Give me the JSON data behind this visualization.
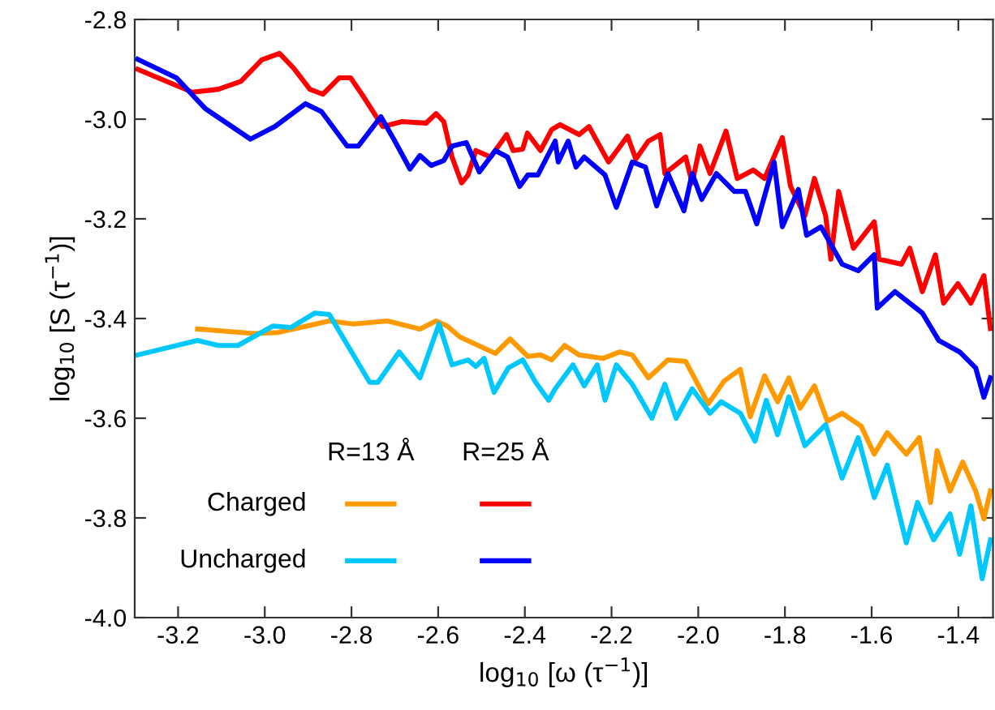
{
  "chart_data": {
    "type": "line",
    "xlabel": "log$_{10}$ [ω (τ$^{−1}$)]",
    "ylabel": "log$_{10}$ [S (τ$^{−1}$)]",
    "xlim": [
      -3.3,
      -1.32
    ],
    "xticks": [
      -3.2,
      {
        "value": -3.0,
        "label": "-3.0"
      },
      -2.8,
      -2.6,
      -2.4,
      -2.2,
      {
        "value": -2.0,
        "label": "-2.0"
      },
      -1.8,
      -1.6,
      -1.4
    ],
    "ylim": [
      -4.0,
      -2.8
    ],
    "yticks": [
      -2.8,
      {
        "value": -3.0,
        "label": "-3.0"
      },
      -3.2,
      -3.4,
      -3.6,
      -3.8,
      {
        "value": -4.0,
        "label": "-4.0"
      }
    ],
    "grid": false,
    "legend": false,
    "marker": "none",
    "line_style": "solid",
    "annotations": [
      "R=13 Å",
      "R=25 Å",
      "Charged",
      "Uncharged"
    ],
    "series": [
      {
        "color": "#ff9900",
        "x": [
          -3.155,
          -3.025,
          -2.97,
          -2.851,
          -2.795,
          -2.717,
          -2.642,
          -2.605,
          -2.579,
          -2.55,
          -2.468,
          -2.434,
          -2.393,
          -2.364,
          -2.338,
          -2.308,
          -2.275,
          -2.219,
          -2.181,
          -2.152,
          -2.115,
          -2.07,
          -2.029,
          -1.977,
          -1.94,
          -1.903,
          -1.88,
          -1.847,
          -1.817,
          -1.791,
          -1.765,
          -1.732,
          -1.702,
          -1.668,
          -1.624,
          -1.594,
          -1.564,
          -1.52,
          -1.49,
          -1.464,
          -1.449,
          -1.419,
          -1.39,
          -1.36,
          -1.341,
          -1.326
        ],
        "values": [
          -3.421,
          -3.43,
          -3.428,
          -3.405,
          -3.411,
          -3.405,
          -3.421,
          -3.405,
          -3.415,
          -3.437,
          -3.47,
          -3.441,
          -3.476,
          -3.473,
          -3.483,
          -3.454,
          -3.473,
          -3.48,
          -3.467,
          -3.473,
          -3.519,
          -3.483,
          -3.486,
          -3.571,
          -3.525,
          -3.502,
          -3.597,
          -3.515,
          -3.567,
          -3.519,
          -3.58,
          -3.535,
          -3.606,
          -3.59,
          -3.616,
          -3.672,
          -3.629,
          -3.672,
          -3.639,
          -3.769,
          -3.665,
          -3.746,
          -3.688,
          -3.746,
          -3.802,
          -3.746
        ]
      },
      {
        "color": "#ff0000",
        "x": [
          -3.293,
          -3.167,
          -3.107,
          -3.055,
          -3.007,
          -2.966,
          -2.933,
          -2.896,
          -2.866,
          -2.828,
          -2.802,
          -2.776,
          -2.728,
          -2.683,
          -2.628,
          -2.605,
          -2.587,
          -2.568,
          -2.546,
          -2.531,
          -2.513,
          -2.479,
          -2.442,
          -2.427,
          -2.405,
          -2.394,
          -2.364,
          -2.338,
          -2.319,
          -2.275,
          -2.252,
          -2.207,
          -2.163,
          -2.144,
          -2.115,
          -2.088,
          -2.077,
          -2.029,
          -2.014,
          -1.996,
          -1.973,
          -1.936,
          -1.91,
          -1.873,
          -1.847,
          -1.806,
          -1.787,
          -1.754,
          -1.732,
          -1.706,
          -1.694,
          -1.676,
          -1.642,
          -1.594,
          -1.583,
          -1.531,
          -1.512,
          -1.483,
          -1.453,
          -1.434,
          -1.401,
          -1.371,
          -1.341,
          -1.326
        ],
        "values": [
          -2.9,
          -2.946,
          -2.94,
          -2.924,
          -2.881,
          -2.868,
          -2.898,
          -2.94,
          -2.95,
          -2.917,
          -2.917,
          -2.95,
          -3.015,
          -3.005,
          -3.008,
          -2.989,
          -3.005,
          -3.076,
          -3.128,
          -3.112,
          -3.063,
          -3.076,
          -3.031,
          -3.063,
          -3.06,
          -3.028,
          -3.063,
          -3.021,
          -3.011,
          -3.031,
          -3.015,
          -3.086,
          -3.034,
          -3.08,
          -3.044,
          -3.031,
          -3.109,
          -3.076,
          -3.128,
          -3.054,
          -3.109,
          -3.024,
          -3.119,
          -3.102,
          -3.119,
          -3.037,
          -3.135,
          -3.194,
          -3.119,
          -3.194,
          -3.281,
          -3.145,
          -3.259,
          -3.206,
          -3.281,
          -3.291,
          -3.259,
          -3.346,
          -3.272,
          -3.369,
          -3.33,
          -3.369,
          -3.314,
          -3.42
        ]
      },
      {
        "color": "#00c8ff",
        "x": [
          -3.293,
          -3.155,
          -3.107,
          -3.062,
          -2.981,
          -2.94,
          -2.884,
          -2.851,
          -2.758,
          -2.739,
          -2.69,
          -2.642,
          -2.598,
          -2.568,
          -2.531,
          -2.513,
          -2.494,
          -2.471,
          -2.438,
          -2.405,
          -2.375,
          -2.345,
          -2.33,
          -2.289,
          -2.263,
          -2.233,
          -2.215,
          -2.189,
          -2.152,
          -2.107,
          -2.077,
          -2.051,
          -2.014,
          -1.973,
          -1.947,
          -1.903,
          -1.869,
          -1.843,
          -1.817,
          -1.791,
          -1.754,
          -1.706,
          -1.668,
          -1.631,
          -1.594,
          -1.564,
          -1.52,
          -1.494,
          -1.457,
          -1.419,
          -1.397,
          -1.371,
          -1.345,
          -1.326
        ],
        "values": [
          -3.473,
          -3.444,
          -3.454,
          -3.454,
          -3.415,
          -3.418,
          -3.389,
          -3.392,
          -3.528,
          -3.528,
          -3.467,
          -3.519,
          -3.411,
          -3.493,
          -3.483,
          -3.496,
          -3.48,
          -3.548,
          -3.499,
          -3.483,
          -3.528,
          -3.564,
          -3.541,
          -3.493,
          -3.535,
          -3.493,
          -3.564,
          -3.493,
          -3.532,
          -3.6,
          -3.532,
          -3.6,
          -3.541,
          -3.59,
          -3.567,
          -3.59,
          -3.646,
          -3.564,
          -3.633,
          -3.557,
          -3.655,
          -3.613,
          -3.72,
          -3.639,
          -3.759,
          -3.694,
          -3.85,
          -3.769,
          -3.844,
          -3.792,
          -3.873,
          -3.776,
          -3.922,
          -3.844
        ]
      },
      {
        "color": "#0000ff",
        "x": [
          -3.293,
          -3.204,
          -3.137,
          -3.033,
          -2.977,
          -2.906,
          -2.869,
          -2.81,
          -2.784,
          -2.732,
          -2.7,
          -2.665,
          -2.642,
          -2.616,
          -2.587,
          -2.568,
          -2.535,
          -2.505,
          -2.468,
          -2.44,
          -2.412,
          -2.393,
          -2.37,
          -2.33,
          -2.323,
          -2.3,
          -2.282,
          -2.263,
          -2.215,
          -2.189,
          -2.152,
          -2.122,
          -2.096,
          -2.07,
          -2.033,
          -2.014,
          -1.992,
          -1.958,
          -1.917,
          -1.891,
          -1.865,
          -1.825,
          -1.806,
          -1.769,
          -1.75,
          -1.717,
          -1.668,
          -1.631,
          -1.594,
          -1.587,
          -1.546,
          -1.483,
          -1.445,
          -1.397,
          -1.36,
          -1.341,
          -1.326
        ],
        "values": [
          -2.88,
          -2.917,
          -2.979,
          -3.04,
          -3.015,
          -2.969,
          -2.985,
          -3.054,
          -3.054,
          -2.995,
          -3.044,
          -3.1,
          -3.073,
          -3.093,
          -3.083,
          -3.054,
          -3.047,
          -3.106,
          -3.063,
          -3.076,
          -3.135,
          -3.112,
          -3.112,
          -3.044,
          -3.086,
          -3.044,
          -3.096,
          -3.076,
          -3.112,
          -3.177,
          -3.086,
          -3.096,
          -3.174,
          -3.109,
          -3.184,
          -3.109,
          -3.161,
          -3.109,
          -3.145,
          -3.145,
          -3.21,
          -3.086,
          -3.216,
          -3.141,
          -3.233,
          -3.216,
          -3.291,
          -3.304,
          -3.272,
          -3.379,
          -3.346,
          -3.389,
          -3.444,
          -3.467,
          -3.499,
          -3.558,
          -3.519
        ]
      }
    ]
  }
}
